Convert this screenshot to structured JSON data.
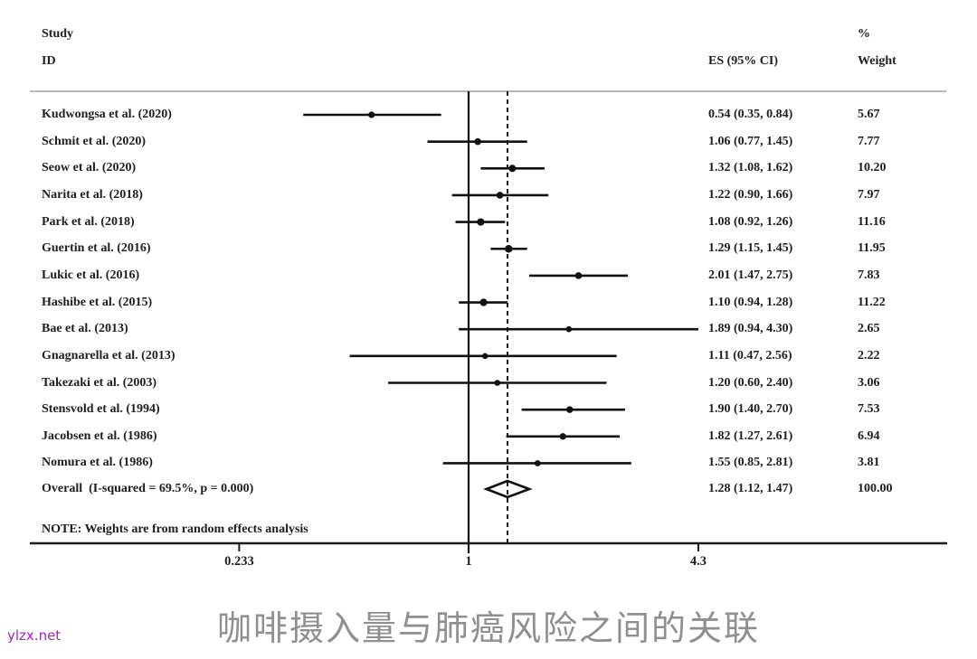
{
  "title": "咖啡摄入量与肺癌风险之间的关联",
  "watermark": "ylzx.net",
  "headers": {
    "study": "Study",
    "id": "ID",
    "es": "ES (95% CI)",
    "percent": "%",
    "weight": "Weight"
  },
  "chart_data": {
    "type": "forest",
    "x_scale": "log",
    "axis_ticks": [
      0.233,
      1,
      4.3
    ],
    "axis_tick_labels": [
      "0.233",
      "1",
      "4.3"
    ],
    "null_line": 1,
    "grid": false,
    "studies": [
      {
        "id": "Kudwongsa et al. (2020)",
        "es": 0.54,
        "ci_low": 0.35,
        "ci_high": 0.84,
        "weight": 5.67,
        "es_label": "0.54 (0.35, 0.84)",
        "weight_label": "5.67"
      },
      {
        "id": "Schmit et al. (2020)",
        "es": 1.06,
        "ci_low": 0.77,
        "ci_high": 1.45,
        "weight": 7.77,
        "es_label": "1.06 (0.77, 1.45)",
        "weight_label": "7.77"
      },
      {
        "id": "Seow et al. (2020)",
        "es": 1.32,
        "ci_low": 1.08,
        "ci_high": 1.62,
        "weight": 10.2,
        "es_label": "1.32 (1.08, 1.62)",
        "weight_label": "10.20"
      },
      {
        "id": "Narita et al. (2018)",
        "es": 1.22,
        "ci_low": 0.9,
        "ci_high": 1.66,
        "weight": 7.97,
        "es_label": "1.22 (0.90, 1.66)",
        "weight_label": "7.97"
      },
      {
        "id": "Park et al. (2018)",
        "es": 1.08,
        "ci_low": 0.92,
        "ci_high": 1.26,
        "weight": 11.16,
        "es_label": "1.08 (0.92, 1.26)",
        "weight_label": "11.16"
      },
      {
        "id": "Guertin et al. (2016)",
        "es": 1.29,
        "ci_low": 1.15,
        "ci_high": 1.45,
        "weight": 11.95,
        "es_label": "1.29 (1.15, 1.45)",
        "weight_label": "11.95"
      },
      {
        "id": "Lukic et al. (2016)",
        "es": 2.01,
        "ci_low": 1.47,
        "ci_high": 2.75,
        "weight": 7.83,
        "es_label": "2.01 (1.47, 2.75)",
        "weight_label": "7.83"
      },
      {
        "id": "Hashibe et al. (2015)",
        "es": 1.1,
        "ci_low": 0.94,
        "ci_high": 1.28,
        "weight": 11.22,
        "es_label": "1.10 (0.94, 1.28)",
        "weight_label": "11.22"
      },
      {
        "id": "Bae et al. (2013)",
        "es": 1.89,
        "ci_low": 0.94,
        "ci_high": 4.3,
        "weight": 2.65,
        "es_label": "1.89 (0.94, 4.30)",
        "weight_label": "2.65"
      },
      {
        "id": "Gnagnarella et al. (2013)",
        "es": 1.11,
        "ci_low": 0.47,
        "ci_high": 2.56,
        "weight": 2.22,
        "es_label": "1.11 (0.47, 2.56)",
        "weight_label": "2.22"
      },
      {
        "id": "Takezaki et al. (2003)",
        "es": 1.2,
        "ci_low": 0.6,
        "ci_high": 2.4,
        "weight": 3.06,
        "es_label": "1.20 (0.60, 2.40)",
        "weight_label": "3.06"
      },
      {
        "id": "Stensvold et al. (1994)",
        "es": 1.9,
        "ci_low": 1.4,
        "ci_high": 2.7,
        "weight": 7.53,
        "es_label": "1.90 (1.40, 2.70)",
        "weight_label": "7.53"
      },
      {
        "id": "Jacobsen et al. (1986)",
        "es": 1.82,
        "ci_low": 1.27,
        "ci_high": 2.61,
        "weight": 6.94,
        "es_label": "1.82 (1.27, 2.61)",
        "weight_label": "6.94"
      },
      {
        "id": "Nomura et al. (1986)",
        "es": 1.55,
        "ci_low": 0.85,
        "ci_high": 2.81,
        "weight": 3.81,
        "es_label": "1.55 (0.85, 2.81)",
        "weight_label": "3.81"
      }
    ],
    "overall": {
      "label": "Overall  (I-squared = 69.5%, p = 0.000)",
      "i_squared": "69.5%",
      "p_value": "0.000",
      "es": 1.28,
      "ci_low": 1.12,
      "ci_high": 1.47,
      "es_label": "1.28 (1.12, 1.47)",
      "weight_label": "100.00"
    },
    "note": "NOTE: Weights are from random effects analysis",
    "colors": {
      "line": "#111111",
      "top_rule": "#b0b0b0",
      "axis": "#1c1c1c",
      "text": "#1e1e1e",
      "title": "#8f8f8f",
      "watermark": "#a821c9"
    }
  }
}
